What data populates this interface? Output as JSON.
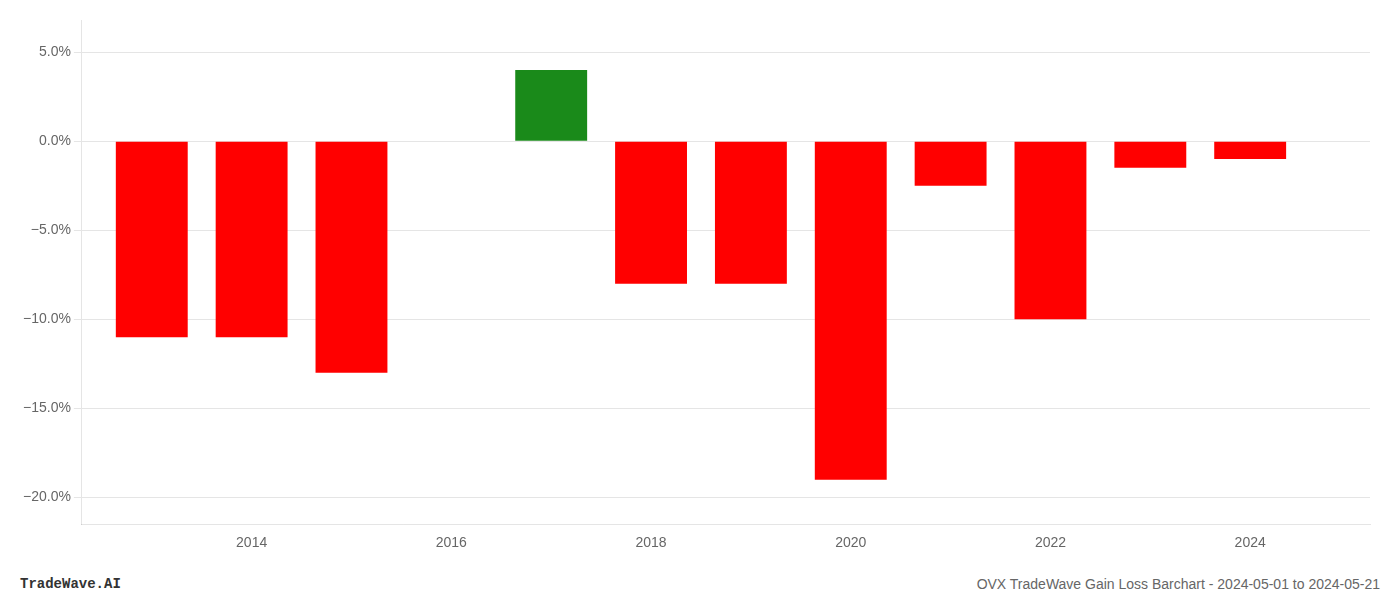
{
  "chart_data": {
    "type": "bar",
    "x": [
      2013,
      2014,
      2015,
      2016,
      2017,
      2018,
      2019,
      2020,
      2021,
      2022,
      2023,
      2024
    ],
    "values": [
      -0.11,
      -0.11,
      -0.13,
      0.0,
      0.04,
      -0.08,
      -0.08,
      -0.19,
      -0.025,
      -0.1,
      -0.015,
      -0.01
    ],
    "colors": [
      "#ff0000",
      "#ff0000",
      "#ff0000",
      "#ff0000",
      "#1a8a1a",
      "#ff0000",
      "#ff0000",
      "#ff0000",
      "#ff0000",
      "#ff0000",
      "#ff0000",
      "#ff0000"
    ],
    "xlim": [
      2012.3,
      2025.2
    ],
    "xticks": [
      2014,
      2016,
      2018,
      2020,
      2022,
      2024
    ],
    "ylim": [
      -0.215,
      0.068
    ],
    "yticks": [
      {
        "value": 0.05,
        "label": "5.0%"
      },
      {
        "value": 0.0,
        "label": "0.0%"
      },
      {
        "value": -0.05,
        "label": "−5.0%"
      },
      {
        "value": -0.1,
        "label": "−10.0%"
      },
      {
        "value": -0.15,
        "label": "−15.0%"
      },
      {
        "value": -0.2,
        "label": "−20.0%"
      }
    ],
    "grid": "y",
    "annotations": [
      "TradeWave.AI",
      "OVX TradeWave Gain Loss Barchart - 2024-05-01 to 2024-05-21"
    ]
  }
}
